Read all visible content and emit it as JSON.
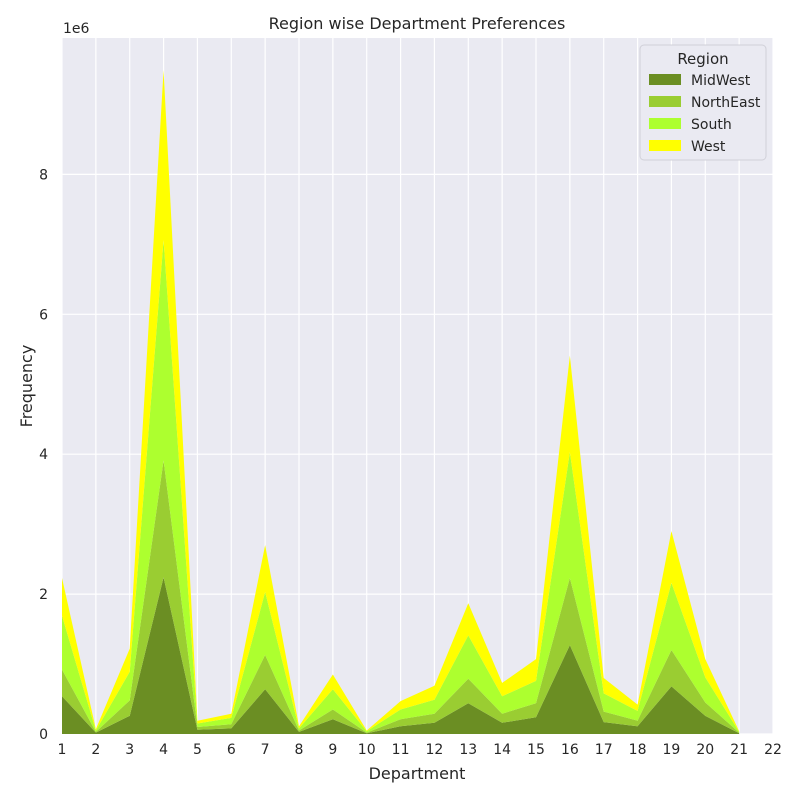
{
  "chart_data": {
    "type": "area",
    "stacked": true,
    "title": "Region wise Department Preferences",
    "xlabel": "Department",
    "ylabel": "Frequency",
    "y_scale_label": "1e6",
    "x": [
      1,
      2,
      3,
      4,
      5,
      6,
      7,
      8,
      9,
      10,
      11,
      12,
      13,
      14,
      15,
      16,
      17,
      18,
      19,
      20,
      21
    ],
    "xlim": [
      1,
      22
    ],
    "xticks": [
      1,
      2,
      3,
      4,
      5,
      6,
      7,
      8,
      9,
      10,
      11,
      12,
      13,
      14,
      15,
      16,
      17,
      18,
      19,
      20,
      21,
      22
    ],
    "ylim": [
      0,
      9.95
    ],
    "yticks": [
      0,
      2,
      4,
      6,
      8
    ],
    "grid": true,
    "legend": {
      "title": "Region",
      "position": "top-right"
    },
    "series": [
      {
        "name": "MidWest",
        "color": "#6b8e23",
        "values": [
          0.54,
          0.02,
          0.26,
          2.24,
          0.06,
          0.08,
          0.64,
          0.03,
          0.21,
          0.01,
          0.11,
          0.16,
          0.44,
          0.16,
          0.24,
          1.27,
          0.17,
          0.11,
          0.68,
          0.26,
          0.01
        ]
      },
      {
        "name": "NorthEast",
        "color": "#9acd32",
        "values": [
          0.38,
          0.01,
          0.22,
          1.67,
          0.04,
          0.06,
          0.49,
          0.02,
          0.14,
          0.01,
          0.1,
          0.13,
          0.35,
          0.13,
          0.2,
          0.96,
          0.15,
          0.08,
          0.52,
          0.19,
          0.01
        ]
      },
      {
        "name": "South",
        "color": "#adff2f",
        "values": [
          0.77,
          0.02,
          0.41,
          3.15,
          0.05,
          0.09,
          0.9,
          0.03,
          0.29,
          0.02,
          0.14,
          0.2,
          0.62,
          0.25,
          0.32,
          1.8,
          0.26,
          0.14,
          0.96,
          0.36,
          0.01
        ]
      },
      {
        "name": "West",
        "color": "#ffff00",
        "values": [
          0.54,
          0.02,
          0.33,
          2.43,
          0.04,
          0.06,
          0.67,
          0.03,
          0.21,
          0.01,
          0.12,
          0.2,
          0.46,
          0.19,
          0.31,
          1.38,
          0.22,
          0.09,
          0.74,
          0.26,
          0.01
        ]
      }
    ]
  }
}
